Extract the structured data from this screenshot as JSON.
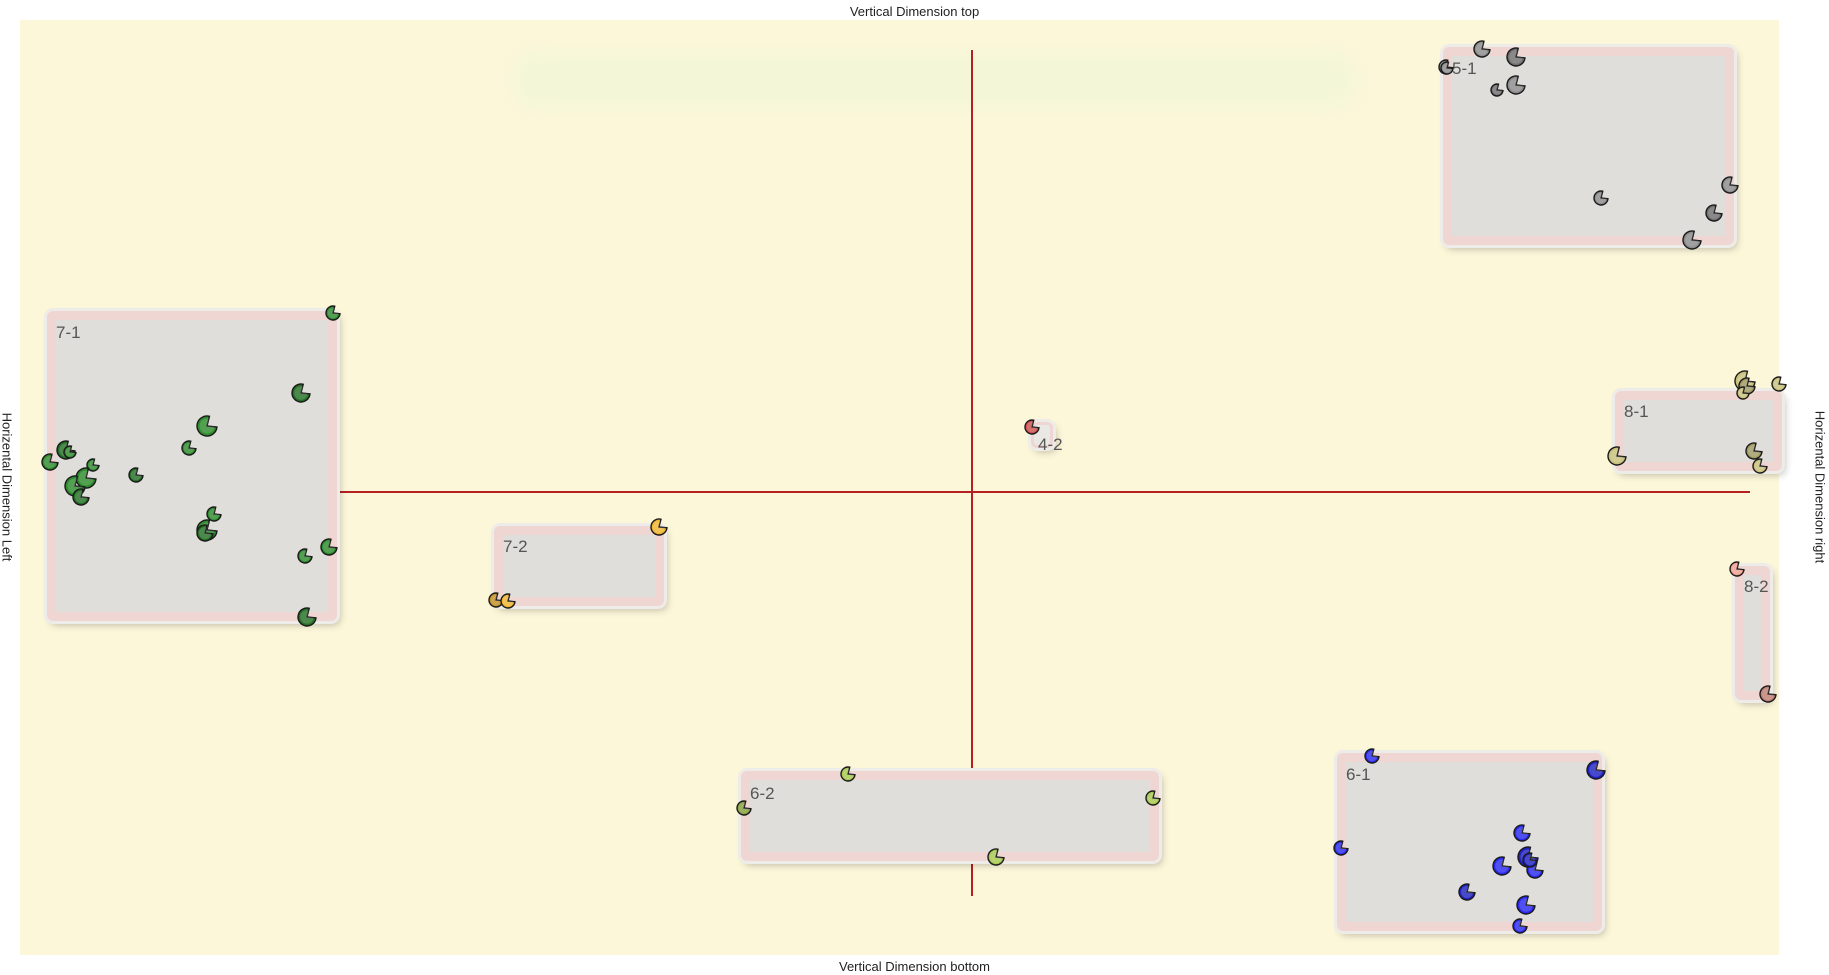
{
  "axes": {
    "top": "Vertical Dimension top",
    "bottom": "Vertical Dimension bottom",
    "left": "Horizental Dimension Left",
    "right": "Horizental Dimension right"
  },
  "colors": {
    "background": "#fdf7da",
    "axis_line": "#b52020",
    "group_fill": "#e0dedb",
    "group_border": "#efd6d2"
  },
  "groups": [
    {
      "id": "5-1",
      "label": "5-1",
      "color": "#8c8c8c",
      "marker_count": 10
    },
    {
      "id": "7-1",
      "label": "7-1",
      "color": "#2e8b2e",
      "marker_count": 18
    },
    {
      "id": "8-1",
      "label": "8-1",
      "color": "#c8c07a",
      "marker_count": 7
    },
    {
      "id": "7-2",
      "label": "7-2",
      "color": "#f0b530",
      "marker_count": 3
    },
    {
      "id": "8-2",
      "label": "8-2",
      "color": "#f0a090",
      "marker_count": 2
    },
    {
      "id": "6-2",
      "label": "6-2",
      "color": "#a8c850",
      "marker_count": 4
    },
    {
      "id": "6-1",
      "label": "6-1",
      "color": "#2a2af0",
      "marker_count": 11
    },
    {
      "id": "4-2",
      "label": "4-2",
      "color": "#d05050",
      "marker_count": 1
    }
  ]
}
